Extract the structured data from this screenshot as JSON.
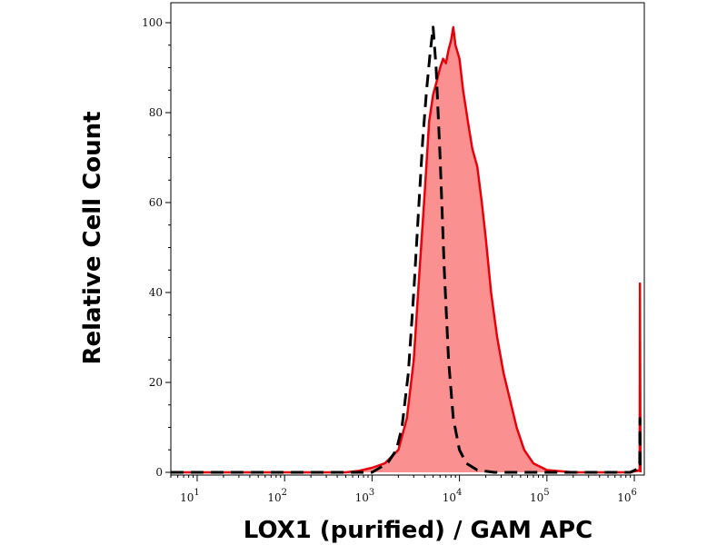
{
  "chart_data": {
    "type": "area",
    "xlabel": "LOX1 (purified) / GAM APC",
    "ylabel": "Relative Cell Count",
    "x_scale": "log",
    "xlim": [
      5,
      1300000
    ],
    "ylim": [
      0,
      100
    ],
    "y_ticks": [
      0,
      20,
      40,
      60,
      80,
      100
    ],
    "x_ticks": [
      {
        "value": 10,
        "base": "10",
        "exp": "1"
      },
      {
        "value": 100,
        "base": "10",
        "exp": "2"
      },
      {
        "value": 1000,
        "base": "10",
        "exp": "3"
      },
      {
        "value": 10000,
        "base": "10",
        "exp": "4"
      },
      {
        "value": 100000,
        "base": "10",
        "exp": "5"
      },
      {
        "value": 1000000,
        "base": "10",
        "exp": "6"
      }
    ],
    "grid": false,
    "legend": "none",
    "series": [
      {
        "style": "filled",
        "color": "#e8000b",
        "fill": "#fb9090",
        "points": [
          [
            5,
            0
          ],
          [
            100,
            0
          ],
          [
            500,
            0
          ],
          [
            700,
            0.3
          ],
          [
            1000,
            1
          ],
          [
            1400,
            2
          ],
          [
            2000,
            5
          ],
          [
            2500,
            12
          ],
          [
            3000,
            25
          ],
          [
            3500,
            45
          ],
          [
            4000,
            62
          ],
          [
            4500,
            78
          ],
          [
            5000,
            84
          ],
          [
            5500,
            87
          ],
          [
            6000,
            90
          ],
          [
            6500,
            92
          ],
          [
            7000,
            91
          ],
          [
            7500,
            94
          ],
          [
            8000,
            96
          ],
          [
            8500,
            99
          ],
          [
            9000,
            95
          ],
          [
            10000,
            92
          ],
          [
            11000,
            85
          ],
          [
            12500,
            78
          ],
          [
            14000,
            72
          ],
          [
            16000,
            68
          ],
          [
            18000,
            60
          ],
          [
            20000,
            52
          ],
          [
            23000,
            40
          ],
          [
            27000,
            30
          ],
          [
            32000,
            22
          ],
          [
            38000,
            16
          ],
          [
            45000,
            10
          ],
          [
            55000,
            5
          ],
          [
            70000,
            2
          ],
          [
            100000,
            0.5
          ],
          [
            200000,
            0
          ],
          [
            900000,
            0
          ],
          [
            1150000,
            0.5
          ],
          [
            1160000,
            42
          ],
          [
            1175000,
            0
          ]
        ]
      },
      {
        "style": "dashed",
        "color": "#000000",
        "points": [
          [
            5,
            0
          ],
          [
            100,
            0
          ],
          [
            1000,
            0
          ],
          [
            1500,
            2
          ],
          [
            1900,
            5
          ],
          [
            2200,
            10
          ],
          [
            2600,
            22
          ],
          [
            3000,
            40
          ],
          [
            3400,
            58
          ],
          [
            3800,
            74
          ],
          [
            4200,
            85
          ],
          [
            4600,
            93
          ],
          [
            5000,
            99
          ],
          [
            5400,
            90
          ],
          [
            6000,
            70
          ],
          [
            6700,
            45
          ],
          [
            7500,
            25
          ],
          [
            8500,
            12
          ],
          [
            10000,
            5
          ],
          [
            12000,
            2
          ],
          [
            16000,
            0.5
          ],
          [
            25000,
            0
          ],
          [
            900000,
            0
          ],
          [
            1150000,
            1
          ],
          [
            1160000,
            12
          ],
          [
            1170000,
            0
          ]
        ]
      }
    ]
  }
}
